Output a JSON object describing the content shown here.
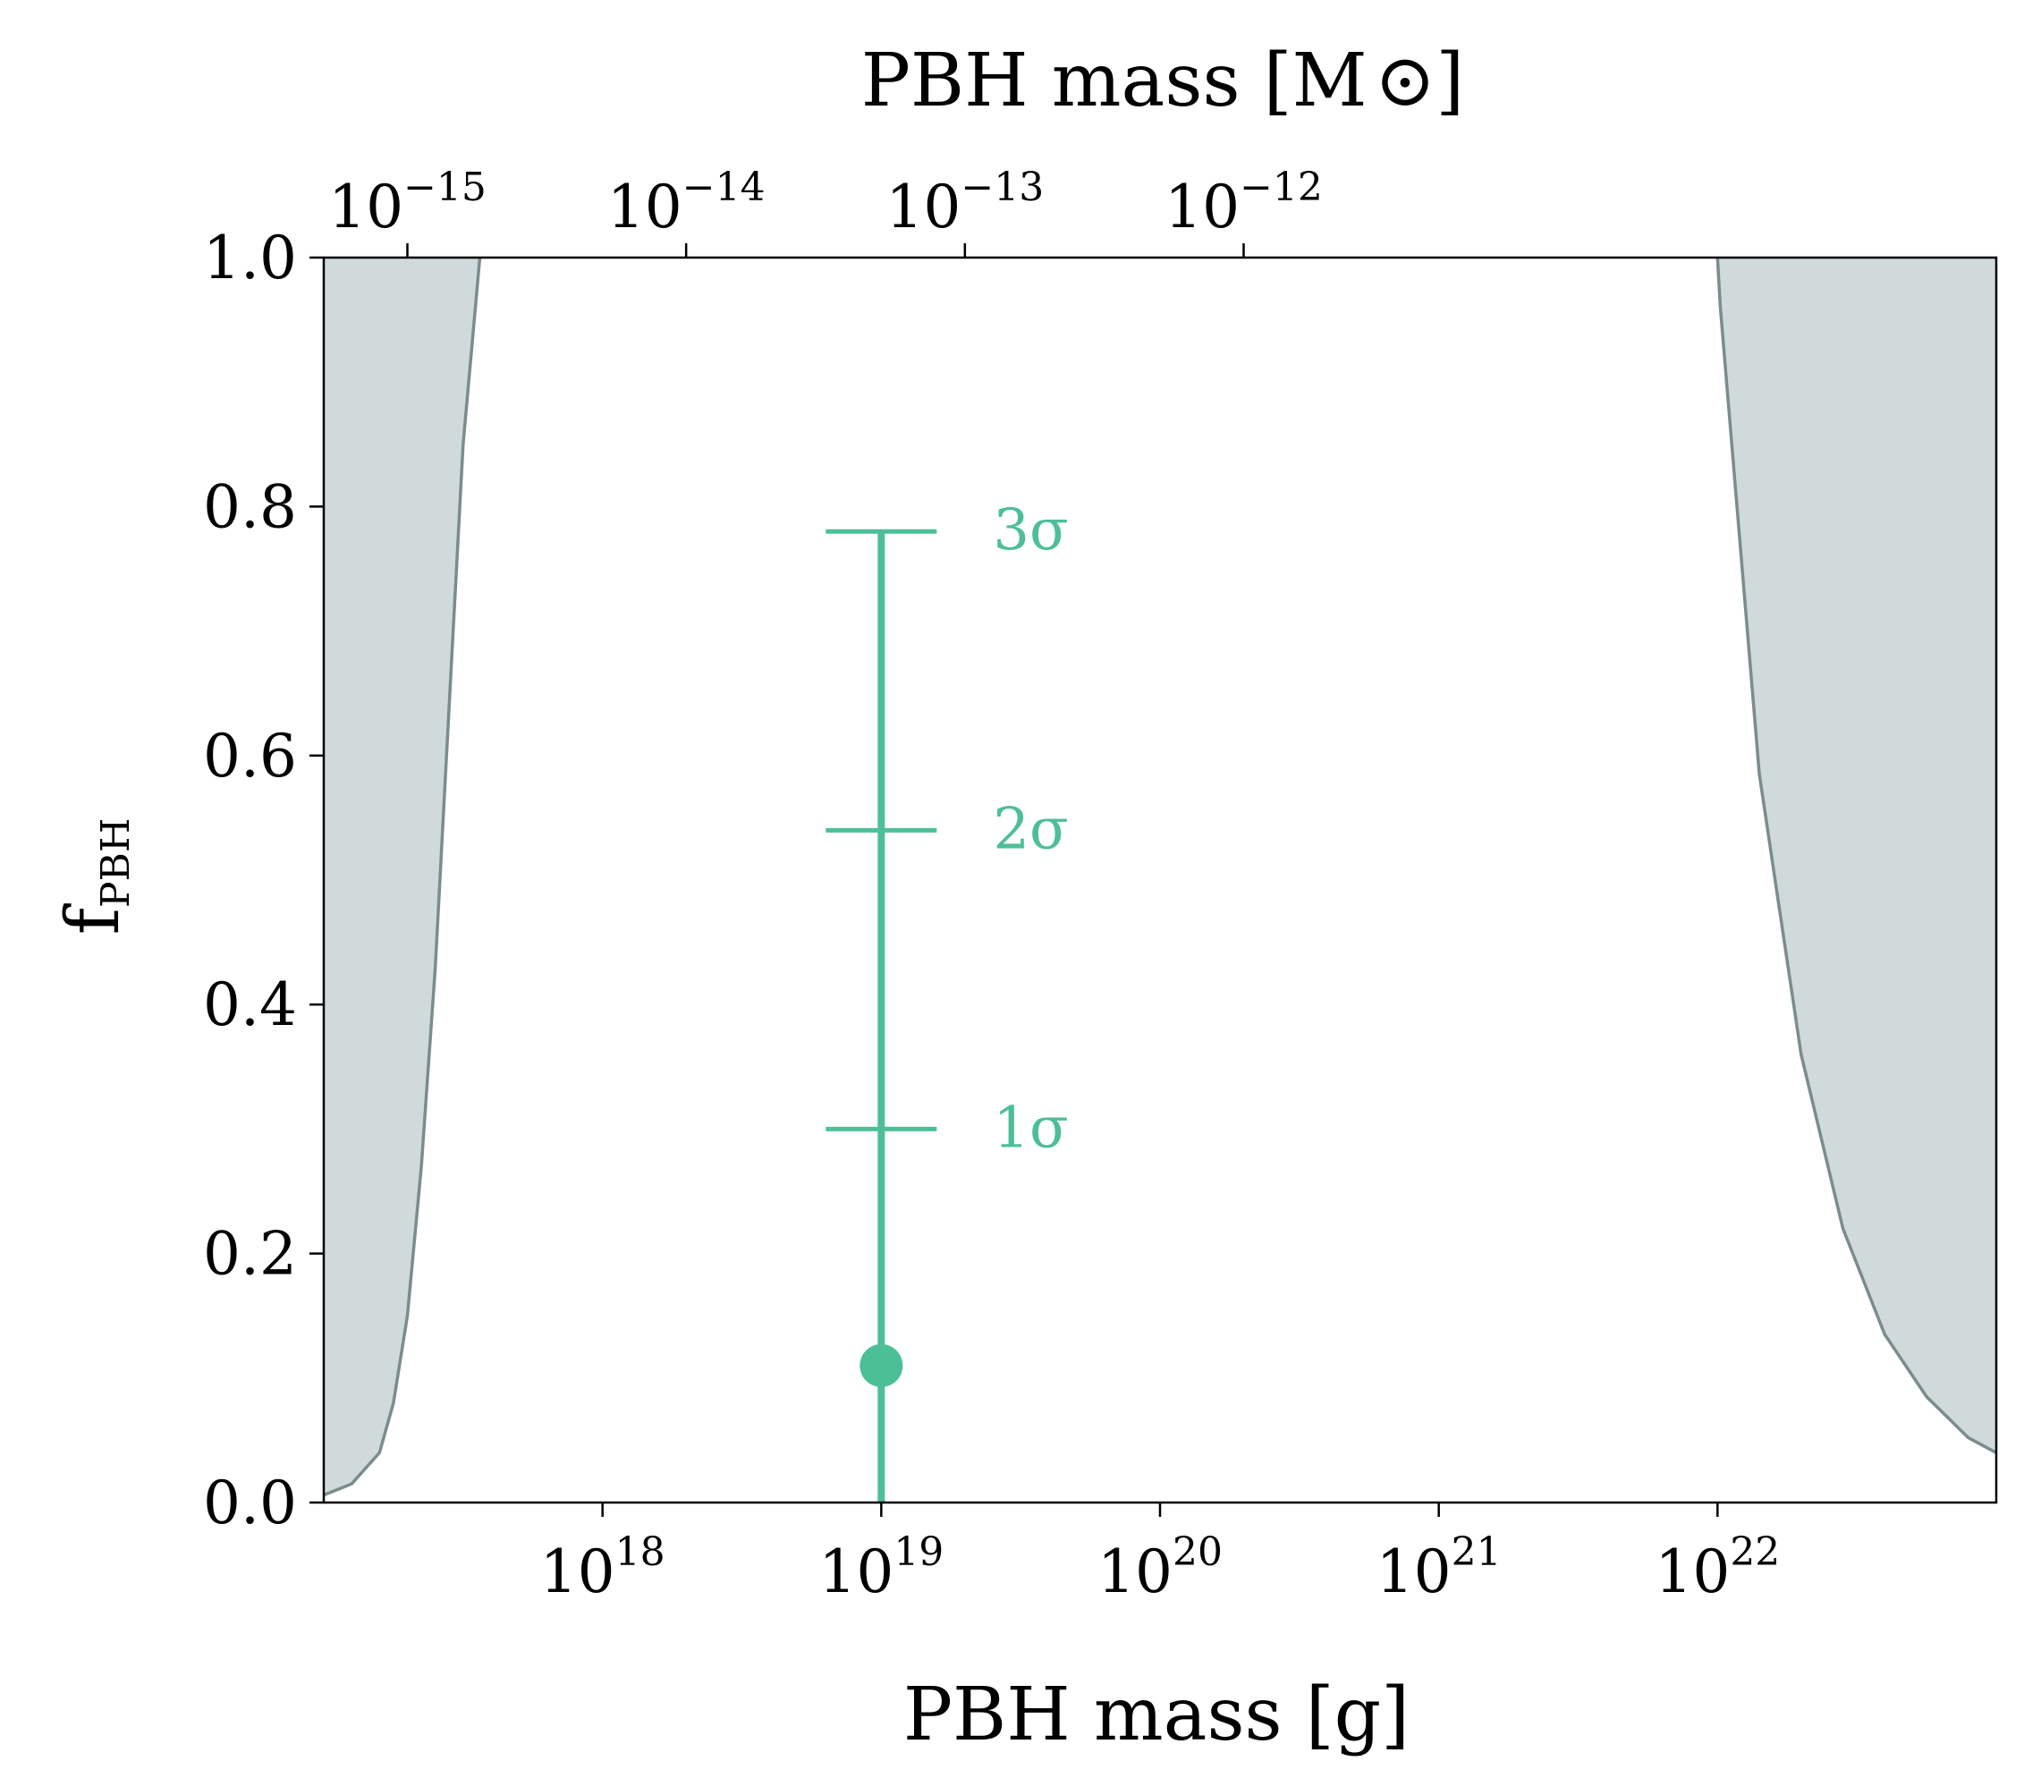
{
  "chart_data": {
    "type": "line",
    "title": "",
    "xlabel": "PBH mass [g]",
    "ylabel": {
      "main": "f",
      "sub": "PBH"
    },
    "x2label": {
      "prefix": "PBH mass [M",
      "suffix": "]",
      "symbol": "⊙"
    },
    "x_scale": "log",
    "xlim_log10": [
      17.0,
      23.0
    ],
    "ylim": [
      0.0,
      1.0
    ],
    "y_ticks": [
      {
        "value": 0.0,
        "label": "0.0"
      },
      {
        "value": 0.2,
        "label": "0.2"
      },
      {
        "value": 0.4,
        "label": "0.4"
      },
      {
        "value": 0.6,
        "label": "0.6"
      },
      {
        "value": 0.8,
        "label": "0.8"
      },
      {
        "value": 1.0,
        "label": "1.0"
      }
    ],
    "x_ticks": [
      {
        "log10": 18,
        "base": "10",
        "exp": "18"
      },
      {
        "log10": 19,
        "base": "10",
        "exp": "19"
      },
      {
        "log10": 20,
        "base": "10",
        "exp": "20"
      },
      {
        "log10": 21,
        "base": "10",
        "exp": "21"
      },
      {
        "log10": 22,
        "base": "10",
        "exp": "22"
      }
    ],
    "x2_ticks": [
      {
        "log10_g": 17.3,
        "base": "10",
        "exp": "−15"
      },
      {
        "log10_g": 18.3,
        "base": "10",
        "exp": "−14"
      },
      {
        "log10_g": 19.3,
        "base": "10",
        "exp": "−13"
      },
      {
        "log10_g": 20.3,
        "base": "10",
        "exp": "−12"
      }
    ],
    "excluded_left": {
      "name": "excluded-region-left",
      "points": [
        [
          17.0,
          0.006
        ],
        [
          17.1,
          0.015
        ],
        [
          17.2,
          0.04
        ],
        [
          17.25,
          0.08
        ],
        [
          17.3,
          0.15
        ],
        [
          17.35,
          0.27
        ],
        [
          17.4,
          0.43
        ],
        [
          17.45,
          0.64
        ],
        [
          17.5,
          0.85
        ],
        [
          17.56,
          1.0
        ]
      ]
    },
    "excluded_right": {
      "name": "excluded-region-right",
      "points": [
        [
          22.0,
          1.0
        ],
        [
          22.01,
          0.96
        ],
        [
          22.15,
          0.585
        ],
        [
          22.3,
          0.36
        ],
        [
          22.45,
          0.22
        ],
        [
          22.6,
          0.135
        ],
        [
          22.75,
          0.085
        ],
        [
          22.9,
          0.052
        ],
        [
          23.0,
          0.04
        ]
      ]
    },
    "measurement": {
      "x_log10": 19.0,
      "central": 0.11,
      "y_low": 0.0,
      "y_high": 0.78,
      "sigma_levels": [
        {
          "label": "1σ",
          "value": 0.3
        },
        {
          "label": "2σ",
          "value": 0.54
        },
        {
          "label": "3σ",
          "value": 0.78
        }
      ]
    },
    "colors": {
      "excluded_fill": "#d1dadb",
      "excluded_edge": "#7a8c8e",
      "measurement": "#4dbf96",
      "axis": "#000000"
    }
  }
}
